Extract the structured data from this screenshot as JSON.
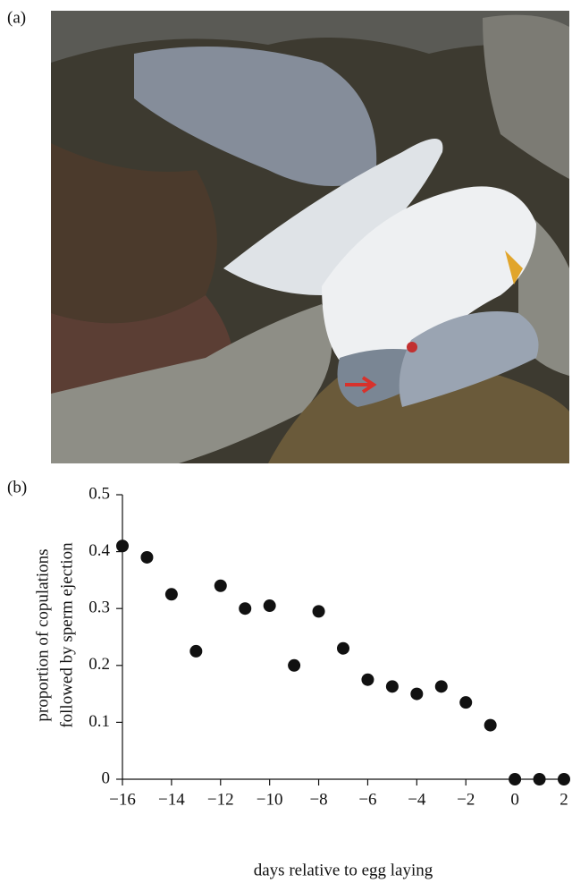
{
  "panel_labels": [
    "(a)",
    "(b)"
  ],
  "chart_data": {
    "type": "scatter",
    "xlabel": "days relative to egg laying",
    "ylabel": [
      "proportion of copulations",
      "followed by sperm ejection"
    ],
    "x": [
      -16,
      -15,
      -14,
      -13,
      -12,
      -11,
      -10,
      -9,
      -8,
      -7,
      -6,
      -5,
      -4,
      -3,
      -2,
      -1,
      0,
      1,
      2
    ],
    "values": [
      0.41,
      0.39,
      0.325,
      0.225,
      0.34,
      0.3,
      0.305,
      0.2,
      0.295,
      0.23,
      0.175,
      0.163,
      0.15,
      0.163,
      0.135,
      0.095,
      0,
      0,
      0
    ],
    "color": "#111111",
    "xlim": [
      -16,
      2
    ],
    "xticks": [
      {
        "value": -16,
        "label": "−16"
      },
      {
        "value": -14,
        "label": "−14"
      },
      {
        "value": -12,
        "label": "−12"
      },
      {
        "value": -10,
        "label": "−10"
      },
      {
        "value": -8,
        "label": "−8"
      },
      {
        "value": -6,
        "label": "−6"
      },
      {
        "value": -4,
        "label": "−4"
      },
      {
        "value": -2,
        "label": "−2"
      },
      0,
      2
    ],
    "ylim": [
      0,
      0.5
    ],
    "yticks": [
      0,
      0.1,
      0.2,
      0.3,
      0.4,
      0.5
    ]
  }
}
